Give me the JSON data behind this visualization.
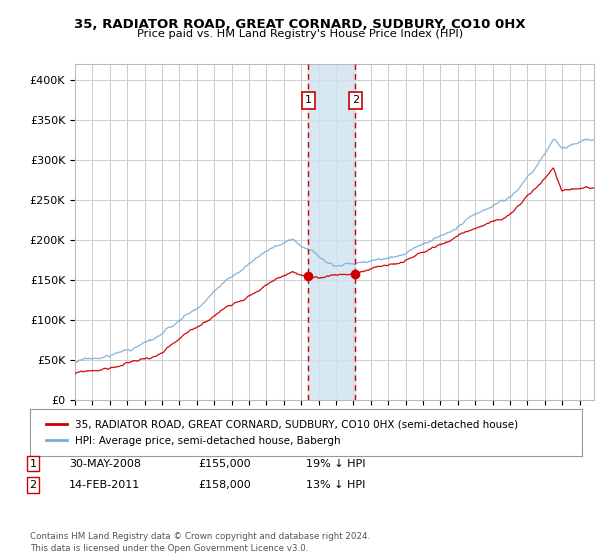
{
  "title": "35, RADIATOR ROAD, GREAT CORNARD, SUDBURY, CO10 0HX",
  "subtitle": "Price paid vs. HM Land Registry's House Price Index (HPI)",
  "ylabel_ticks": [
    "£0",
    "£50K",
    "£100K",
    "£150K",
    "£200K",
    "£250K",
    "£300K",
    "£350K",
    "£400K"
  ],
  "ylim": [
    0,
    420000
  ],
  "xlim_start": 1995.0,
  "xlim_end": 2024.83,
  "transaction1_date": 2008.41,
  "transaction1_label": "1",
  "transaction1_price": 155000,
  "transaction2_date": 2011.12,
  "transaction2_label": "2",
  "transaction2_price": 158000,
  "shade_x1": 2008.41,
  "shade_x2": 2011.12,
  "legend_property": "35, RADIATOR ROAD, GREAT CORNARD, SUDBURY, CO10 0HX (semi-detached house)",
  "legend_hpi": "HPI: Average price, semi-detached house, Babergh",
  "table_rows": [
    [
      "1",
      "30-MAY-2008",
      "£155,000",
      "19% ↓ HPI"
    ],
    [
      "2",
      "14-FEB-2011",
      "£158,000",
      "13% ↓ HPI"
    ]
  ],
  "footer": "Contains HM Land Registry data © Crown copyright and database right 2024.\nThis data is licensed under the Open Government Licence v3.0.",
  "line_color_property": "#cc0000",
  "line_color_hpi": "#7aadd4",
  "shade_color": "#d0e4f0",
  "vline_color": "#cc0000",
  "background_color": "#ffffff",
  "grid_color": "#cccccc"
}
